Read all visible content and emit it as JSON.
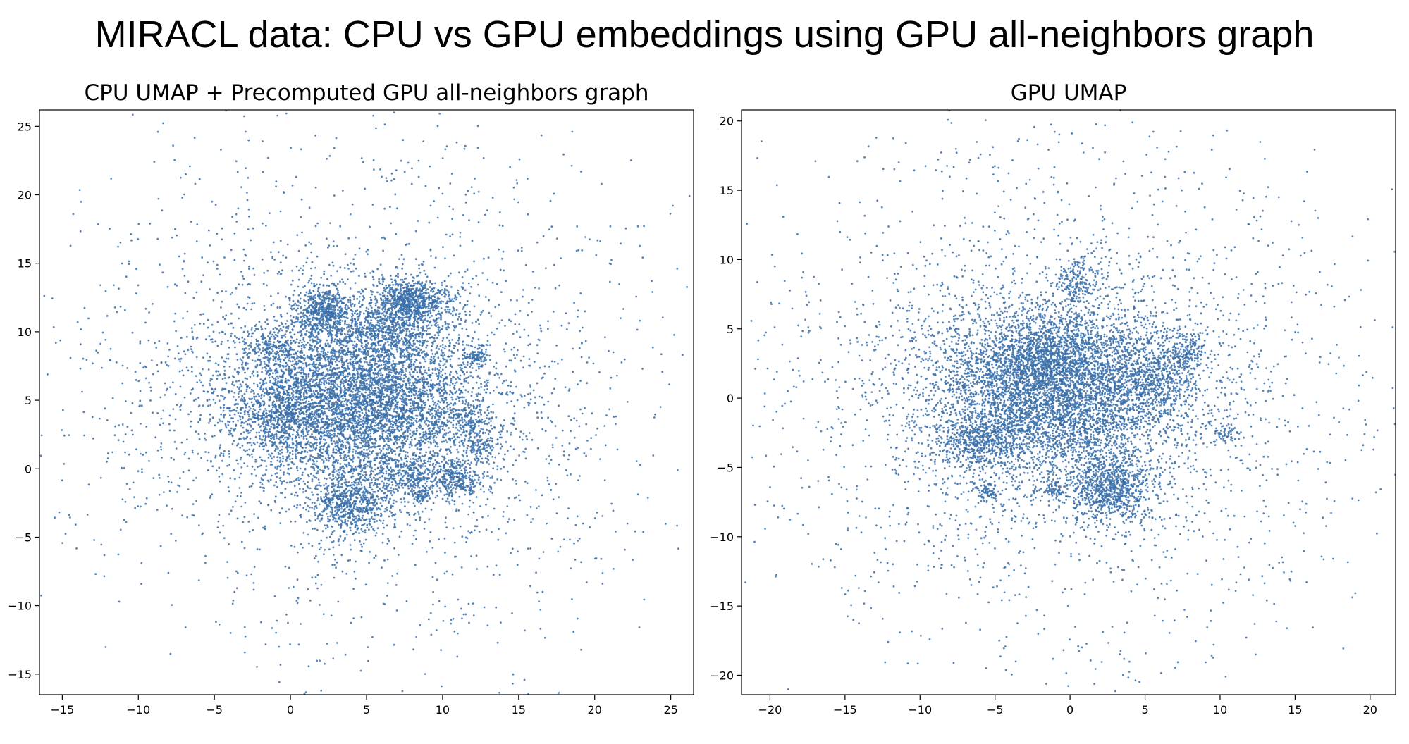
{
  "figure": {
    "title": "MIRACL data: CPU vs GPU embeddings using GPU all-neighbors graph",
    "point_color": "#3a70aa"
  },
  "chart_data": [
    {
      "type": "scatter",
      "title": "CPU UMAP + Precomputed GPU all-neighbors graph",
      "xlabel": "",
      "ylabel": "",
      "xlim": [
        -16.5,
        26.5
      ],
      "ylim": [
        -16.5,
        26.2
      ],
      "xticks": [
        -15,
        -10,
        -5,
        0,
        5,
        10,
        15,
        20,
        25
      ],
      "yticks": [
        -15,
        -10,
        -5,
        0,
        5,
        10,
        15,
        20,
        25
      ],
      "xtick_labels": [
        "−15",
        "−10",
        "−5",
        "0",
        "5",
        "10",
        "15",
        "20",
        "25"
      ],
      "ytick_labels": [
        "−15",
        "−10",
        "−5",
        "0",
        "5",
        "10",
        "15",
        "20",
        "25"
      ],
      "grid": false,
      "series": [
        {
          "clusters": [
            {
              "cx": 4.5,
              "cy": 5.0,
              "sx": 4.2,
              "sy": 3.0,
              "n": 5200
            },
            {
              "cx": 2.2,
              "cy": 11.5,
              "sx": 0.9,
              "sy": 1.0,
              "n": 550
            },
            {
              "cx": 8.0,
              "cy": 12.3,
              "sx": 1.3,
              "sy": 0.8,
              "n": 700
            },
            {
              "cx": 6.5,
              "cy": 10.2,
              "sx": 1.6,
              "sy": 1.2,
              "n": 600
            },
            {
              "cx": 4.0,
              "cy": -2.5,
              "sx": 1.3,
              "sy": 1.2,
              "n": 700
            },
            {
              "cx": 11.0,
              "cy": -0.8,
              "sx": 0.8,
              "sy": 0.8,
              "n": 280
            },
            {
              "cx": 12.2,
              "cy": 8.2,
              "sx": 0.4,
              "sy": 0.4,
              "n": 90
            },
            {
              "cx": 11.7,
              "cy": 3.5,
              "sx": 0.6,
              "sy": 0.6,
              "n": 120
            },
            {
              "cx": 12.5,
              "cy": 1.5,
              "sx": 0.6,
              "sy": 0.5,
              "n": 100
            },
            {
              "cx": -1.3,
              "cy": 9.0,
              "sx": 1.0,
              "sy": 0.8,
              "n": 200
            },
            {
              "cx": -0.5,
              "cy": 4.0,
              "sx": 1.2,
              "sy": 1.5,
              "n": 350
            },
            {
              "cx": 8.0,
              "cy": -0.5,
              "sx": 1.0,
              "sy": 0.8,
              "n": 250
            },
            {
              "cx": 8.5,
              "cy": -2.0,
              "sx": 0.3,
              "sy": 0.3,
              "n": 60
            },
            {
              "cx": 4.6,
              "cy": 5.0,
              "sx": 8.0,
              "sy": 7.0,
              "n": 1800
            },
            {
              "cx": 4.6,
              "cy": 5.0,
              "sx": 10.0,
              "sy": 10.0,
              "n": 700
            }
          ],
          "ring": {
            "cx": 4.9,
            "cy": 4.8,
            "r": 18.8,
            "spread": 2.2,
            "n": 150
          },
          "seed": 7
        }
      ]
    },
    {
      "type": "scatter",
      "title": "GPU UMAP",
      "xlabel": "",
      "ylabel": "",
      "xlim": [
        -21.9,
        21.7
      ],
      "ylim": [
        -21.4,
        20.8
      ],
      "xticks": [
        -20,
        -15,
        -10,
        -5,
        0,
        5,
        10,
        15,
        20
      ],
      "yticks": [
        -20,
        -15,
        -10,
        -5,
        0,
        5,
        10,
        15,
        20
      ],
      "xtick_labels": [
        "−20",
        "−15",
        "−10",
        "−5",
        "0",
        "5",
        "10",
        "15",
        "20"
      ],
      "ytick_labels": [
        "−20",
        "−15",
        "−10",
        "−5",
        "0",
        "5",
        "10",
        "15",
        "20"
      ],
      "grid": false,
      "series": [
        {
          "clusters": [
            {
              "cx": -1.0,
              "cy": 0.5,
              "sx": 4.5,
              "sy": 3.2,
              "n": 5000
            },
            {
              "cx": -2.0,
              "cy": 3.0,
              "sx": 2.0,
              "sy": 1.8,
              "n": 700
            },
            {
              "cx": 2.8,
              "cy": -6.5,
              "sx": 1.4,
              "sy": 1.2,
              "n": 800
            },
            {
              "cx": -6.0,
              "cy": -3.0,
              "sx": 1.5,
              "sy": 1.0,
              "n": 450
            },
            {
              "cx": 5.5,
              "cy": 1.5,
              "sx": 1.5,
              "sy": 1.5,
              "n": 450
            },
            {
              "cx": 0.5,
              "cy": 8.5,
              "sx": 0.8,
              "sy": 0.8,
              "n": 160
            },
            {
              "cx": 7.8,
              "cy": 3.3,
              "sx": 0.6,
              "sy": 0.8,
              "n": 150
            },
            {
              "cx": -5.5,
              "cy": -6.8,
              "sx": 0.4,
              "sy": 0.3,
              "n": 60
            },
            {
              "cx": -1.0,
              "cy": -6.7,
              "sx": 0.4,
              "sy": 0.3,
              "n": 60
            },
            {
              "cx": 10.5,
              "cy": -2.5,
              "sx": 0.5,
              "sy": 0.3,
              "n": 50
            },
            {
              "cx": -1.0,
              "cy": 0.0,
              "sx": 8.5,
              "sy": 7.5,
              "n": 1800
            },
            {
              "cx": -1.0,
              "cy": 0.0,
              "sx": 10.5,
              "sy": 10.5,
              "n": 700
            }
          ],
          "ring": {
            "cx": -0.5,
            "cy": -0.2,
            "r": 19.0,
            "spread": 1.5,
            "n": 170
          },
          "seed": 13
        }
      ]
    }
  ]
}
